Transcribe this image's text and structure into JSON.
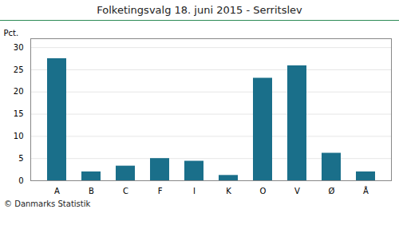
{
  "chart_data": {
    "type": "bar",
    "title": "Folketingsvalg 18. juni 2015 - Serritslev",
    "ylabel": "Pct.",
    "caption": "© Danmarks Statistik",
    "categories": [
      "A",
      "B",
      "C",
      "F",
      "I",
      "K",
      "O",
      "V",
      "Ø",
      "Å"
    ],
    "values": [
      27.5,
      2.0,
      3.3,
      5.0,
      4.4,
      1.2,
      23.1,
      25.9,
      6.2,
      2.0
    ],
    "color": "#1a6f8a",
    "ylim": [
      0,
      32
    ],
    "yticks": [
      0,
      5,
      10,
      15,
      20,
      25,
      30
    ],
    "grid": true
  }
}
